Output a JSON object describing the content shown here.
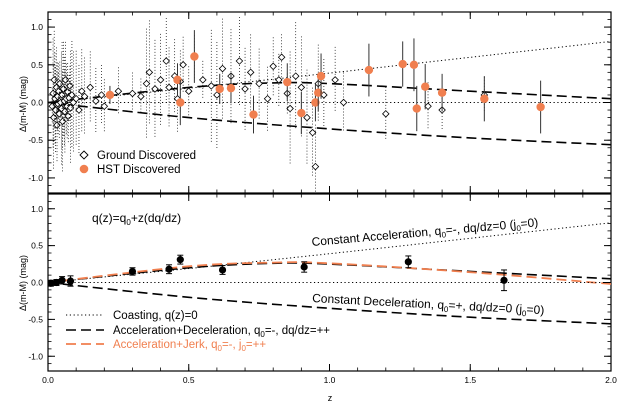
{
  "chart_data": [
    {
      "type": "scatter",
      "xlim": [
        0.0,
        2.0
      ],
      "ylim": [
        -1.2,
        1.2
      ],
      "ylabel": "Δ(m-M) (mag)",
      "yticks": [
        -1.0,
        -0.5,
        0.0,
        0.5,
        1.0
      ],
      "ytick_labels": [
        "-1.0",
        "-0.5",
        "0.0",
        "0.5",
        "1.0"
      ],
      "grid": false,
      "legend_position": "bottom-left",
      "colors": {
        "hst": "#f07f4f",
        "ground": "#000000"
      },
      "series": [
        {
          "name": "Ground Discovered",
          "marker": "open-diamond",
          "points": [
            [
              0.015,
              -0.05
            ],
            [
              0.018,
              0.12
            ],
            [
              0.02,
              -0.2
            ],
            [
              0.022,
              0.3
            ],
            [
              0.025,
              0.05
            ],
            [
              0.027,
              -0.1
            ],
            [
              0.03,
              0.2
            ],
            [
              0.032,
              -0.3
            ],
            [
              0.034,
              0.08
            ],
            [
              0.036,
              -0.02
            ],
            [
              0.038,
              0.15
            ],
            [
              0.04,
              -0.15
            ],
            [
              0.042,
              0.25
            ],
            [
              0.045,
              0.0
            ],
            [
              0.048,
              -0.08
            ],
            [
              0.05,
              0.1
            ],
            [
              0.052,
              -0.25
            ],
            [
              0.055,
              0.18
            ],
            [
              0.058,
              0.02
            ],
            [
              0.06,
              -0.12
            ],
            [
              0.062,
              0.3
            ],
            [
              0.065,
              0.05
            ],
            [
              0.068,
              -0.05
            ],
            [
              0.07,
              0.14
            ],
            [
              0.072,
              -0.18
            ],
            [
              0.075,
              0.06
            ],
            [
              0.078,
              0.22
            ],
            [
              0.08,
              -0.07
            ],
            [
              0.085,
              0.1
            ],
            [
              0.09,
              0.0
            ],
            [
              0.1,
              0.05
            ],
            [
              0.11,
              -0.1
            ],
            [
              0.12,
              0.15
            ],
            [
              0.13,
              0.08
            ],
            [
              0.15,
              0.2
            ],
            [
              0.17,
              0.02
            ],
            [
              0.19,
              0.1
            ],
            [
              0.2,
              -0.05
            ],
            [
              0.25,
              0.15
            ],
            [
              0.3,
              0.12
            ],
            [
              0.33,
              0.08
            ],
            [
              0.35,
              0.25
            ],
            [
              0.36,
              0.4
            ],
            [
              0.38,
              0.18
            ],
            [
              0.4,
              0.3
            ],
            [
              0.42,
              0.55
            ],
            [
              0.43,
              0.2
            ],
            [
              0.45,
              0.35
            ],
            [
              0.46,
              0.05
            ],
            [
              0.47,
              0.28
            ],
            [
              0.48,
              0.5
            ],
            [
              0.5,
              0.15
            ],
            [
              0.52,
              0.6
            ],
            [
              0.55,
              0.3
            ],
            [
              0.58,
              0.22
            ],
            [
              0.6,
              0.1
            ],
            [
              0.62,
              0.45
            ],
            [
              0.65,
              0.35
            ],
            [
              0.68,
              0.55
            ],
            [
              0.7,
              0.18
            ],
            [
              0.72,
              0.4
            ],
            [
              0.75,
              0.25
            ],
            [
              0.78,
              0.05
            ],
            [
              0.8,
              0.48
            ],
            [
              0.82,
              0.3
            ],
            [
              0.83,
              0.6
            ],
            [
              0.85,
              0.12
            ],
            [
              0.86,
              -0.08
            ],
            [
              0.88,
              0.35
            ],
            [
              0.9,
              0.2
            ],
            [
              0.92,
              -0.2
            ],
            [
              0.94,
              -0.4
            ],
            [
              0.95,
              -0.85
            ],
            [
              0.96,
              0.25
            ],
            [
              0.98,
              0.1
            ],
            [
              1.02,
              0.3
            ],
            [
              1.05,
              0.0
            ],
            [
              1.2,
              -0.15
            ],
            [
              1.35,
              -0.05
            ],
            [
              1.4,
              -0.1
            ],
            [
              1.55,
              0.1
            ]
          ]
        },
        {
          "name": "HST Discovered",
          "marker": "filled-circle",
          "points": [
            [
              0.22,
              0.1
            ],
            [
              0.46,
              0.3
            ],
            [
              0.47,
              0.0
            ],
            [
              0.52,
              0.61
            ],
            [
              0.61,
              0.18
            ],
            [
              0.65,
              0.19
            ],
            [
              0.73,
              -0.16
            ],
            [
              0.85,
              0.27
            ],
            [
              0.9,
              -0.14
            ],
            [
              0.95,
              0.0
            ],
            [
              0.96,
              0.13
            ],
            [
              0.97,
              0.35
            ],
            [
              1.14,
              0.43
            ],
            [
              1.26,
              0.51
            ],
            [
              1.3,
              0.5
            ],
            [
              1.31,
              -0.08
            ],
            [
              1.34,
              0.21
            ],
            [
              1.4,
              0.13
            ],
            [
              1.55,
              0.05
            ],
            [
              1.75,
              -0.06
            ]
          ],
          "yerr": [
            0.12,
            0.22,
            0.3,
            0.35,
            0.2,
            0.2,
            0.25,
            0.25,
            0.28,
            0.25,
            0.25,
            0.3,
            0.35,
            0.3,
            0.35,
            0.3,
            0.3,
            0.25,
            0.3,
            0.35
          ]
        }
      ],
      "curves": [
        {
          "style": "dotted",
          "points": [
            [
              0.0,
              0.0
            ],
            [
              0.5,
              0.19
            ],
            [
              1.0,
              0.39
            ],
            [
              1.5,
              0.6
            ],
            [
              2.0,
              0.81
            ]
          ]
        },
        {
          "style": "long-dash",
          "points": [
            [
              0.0,
              0.0
            ],
            [
              0.5,
              0.2
            ],
            [
              0.8,
              0.26
            ],
            [
              1.0,
              0.25
            ],
            [
              1.5,
              0.15
            ],
            [
              2.0,
              0.05
            ]
          ]
        },
        {
          "style": "long-dash",
          "points": [
            [
              0.0,
              0.0
            ],
            [
              0.5,
              -0.2
            ],
            [
              1.0,
              -0.35
            ],
            [
              1.5,
              -0.47
            ],
            [
              2.0,
              -0.56
            ]
          ]
        },
        {
          "style": "dotted",
          "points": [
            [
              0.0,
              0.0
            ],
            [
              2.0,
              0.0
            ]
          ]
        }
      ]
    },
    {
      "type": "scatter",
      "xlim": [
        0.0,
        2.0
      ],
      "ylim": [
        -1.2,
        1.2
      ],
      "xlabel": "z",
      "ylabel": "Δ(m-M) (mag)",
      "xticks": [
        0.0,
        0.5,
        1.0,
        1.5,
        2.0
      ],
      "xtick_labels": [
        "0.0",
        "0.5",
        "1.0",
        "1.5",
        "2.0"
      ],
      "yticks": [
        -1.0,
        -0.5,
        0.0,
        0.5,
        1.0
      ],
      "ytick_labels": [
        "-1.0",
        "-0.5",
        "0.0",
        "0.5",
        "1.0"
      ],
      "grid": false,
      "legend_position": "bottom-left",
      "colors": {
        "jerk": "#f07f4f",
        "data": "#000000"
      },
      "formula": "q(z)=q0+z(dq/dz)",
      "annotations": [
        "Constant Acceleration, q0=-, dq/dz=0 (j0=0)",
        "Constant Deceleration, q0=+, dq/dz=0 (j0=0)"
      ],
      "binned_points": {
        "x": [
          0.01,
          0.03,
          0.05,
          0.08,
          0.3,
          0.43,
          0.47,
          0.62,
          0.91,
          1.28,
          1.62
        ],
        "y": [
          -0.01,
          0.0,
          0.03,
          0.02,
          0.15,
          0.18,
          0.31,
          0.17,
          0.21,
          0.28,
          0.03
        ],
        "yerr": [
          0.04,
          0.04,
          0.05,
          0.07,
          0.05,
          0.06,
          0.06,
          0.06,
          0.07,
          0.08,
          0.14
        ]
      },
      "legend": [
        {
          "label": "Coasting, q(z)=0",
          "style": "dotted"
        },
        {
          "label": "Acceleration+Deceleration, q0=-, dq/dz=++",
          "style": "long-dash"
        },
        {
          "label": "Acceleration+Jerk, q0=-, j0=++",
          "style": "orange-dash"
        }
      ],
      "curves": [
        {
          "style": "dotted",
          "points": [
            [
              0.0,
              0.0
            ],
            [
              0.5,
              0.19
            ],
            [
              1.0,
              0.39
            ],
            [
              1.5,
              0.6
            ],
            [
              2.0,
              0.81
            ]
          ]
        },
        {
          "style": "long-dash",
          "points": [
            [
              0.0,
              0.0
            ],
            [
              0.5,
              0.2
            ],
            [
              0.8,
              0.26
            ],
            [
              1.0,
              0.25
            ],
            [
              1.5,
              0.15
            ],
            [
              2.0,
              0.05
            ]
          ]
        },
        {
          "style": "orange-dash",
          "points": [
            [
              0.0,
              0.0
            ],
            [
              0.5,
              0.22
            ],
            [
              0.8,
              0.27
            ],
            [
              1.0,
              0.26
            ],
            [
              1.5,
              0.14
            ],
            [
              2.0,
              -0.02
            ]
          ]
        },
        {
          "style": "long-dash",
          "points": [
            [
              0.0,
              0.0
            ],
            [
              0.5,
              -0.2
            ],
            [
              1.0,
              -0.35
            ],
            [
              1.5,
              -0.47
            ],
            [
              2.0,
              -0.56
            ]
          ]
        },
        {
          "style": "dotted",
          "points": [
            [
              0.0,
              0.0
            ],
            [
              2.0,
              0.0
            ]
          ]
        }
      ]
    }
  ]
}
